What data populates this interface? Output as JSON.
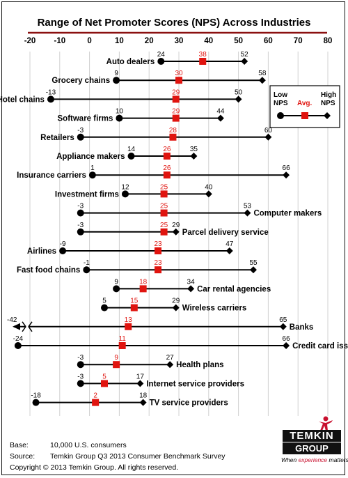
{
  "title": "Range of Net Promoter Scores (NPS) Across Industries",
  "chart_data": {
    "type": "range-dot",
    "xlim": [
      -20,
      80
    ],
    "xticks": [
      -20,
      -10,
      0,
      10,
      20,
      30,
      40,
      50,
      60,
      70,
      80
    ],
    "grid": true,
    "legend_position": "top-right",
    "series_names": [
      "Low NPS",
      "Avg.",
      "High NPS"
    ],
    "rows": [
      {
        "label": "Auto dealers",
        "low": 24,
        "avg": 38,
        "high": 52,
        "label_side": "left"
      },
      {
        "label": "Grocery chains",
        "low": 9,
        "avg": 30,
        "high": 58,
        "label_side": "left"
      },
      {
        "label": "Hotel chains",
        "low": -13,
        "avg": 29,
        "high": 50,
        "label_side": "left"
      },
      {
        "label": "Software firms",
        "low": 10,
        "avg": 29,
        "high": 44,
        "label_side": "left"
      },
      {
        "label": "Retailers",
        "low": -3,
        "avg": 28,
        "high": 60,
        "label_side": "left"
      },
      {
        "label": "Appliance makers",
        "low": 14,
        "avg": 26,
        "high": 35,
        "label_side": "left"
      },
      {
        "label": "Insurance carriers",
        "low": 1,
        "avg": 26,
        "high": 66,
        "label_side": "left"
      },
      {
        "label": "Investment firms",
        "low": 12,
        "avg": 25,
        "high": 40,
        "label_side": "left"
      },
      {
        "label": "Computer makers",
        "low": -3,
        "avg": 25,
        "high": 53,
        "label_side": "right"
      },
      {
        "label": "Parcel delivery service",
        "low": -3,
        "avg": 25,
        "high": 29,
        "label_side": "right"
      },
      {
        "label": "Airlines",
        "low": -9,
        "avg": 23,
        "high": 47,
        "label_side": "left"
      },
      {
        "label": "Fast food chains",
        "low": -1,
        "avg": 23,
        "high": 55,
        "label_side": "left"
      },
      {
        "label": "Car rental agencies",
        "low": 9,
        "avg": 18,
        "high": 34,
        "label_side": "right"
      },
      {
        "label": "Wireless carriers",
        "low": 5,
        "avg": 15,
        "high": 29,
        "label_side": "right"
      },
      {
        "label": "Banks",
        "low": -42,
        "avg": 13,
        "high": 65,
        "label_side": "right",
        "axis_break": true
      },
      {
        "label": "Credit card issuers",
        "low": -24,
        "avg": 11,
        "high": 66,
        "label_side": "right"
      },
      {
        "label": "Health plans",
        "low": -3,
        "avg": 9,
        "high": 27,
        "label_side": "right"
      },
      {
        "label": "Internet service providers",
        "low": -3,
        "avg": 5,
        "high": 17,
        "label_side": "right"
      },
      {
        "label": "TV service providers",
        "low": -18,
        "avg": 2,
        "high": 18,
        "label_side": "right"
      }
    ]
  },
  "legend": {
    "low_line1": "Low",
    "low_line2": "NPS",
    "avg": "Avg.",
    "high_line1": "High",
    "high_line2": "NPS"
  },
  "colors": {
    "avg_marker": "#e0140f",
    "axis_rule": "#8b1010",
    "line": "#000000"
  },
  "footer": {
    "base_key": "Base:",
    "base_val": "10,000 U.S. consumers",
    "source_key": "Source:",
    "source_val": "Temkin Group Q3 2013 Consumer Benchmark Survey",
    "copyright": "Copyright © 2013 Temkin Group. All rights reserved."
  },
  "logo": {
    "word1": "TEMKIN",
    "word2": "GROUP",
    "tagline_pre": "When ",
    "tagline_em": "experience",
    "tagline_post": " matters",
    "icon": "person-figure-icon"
  }
}
